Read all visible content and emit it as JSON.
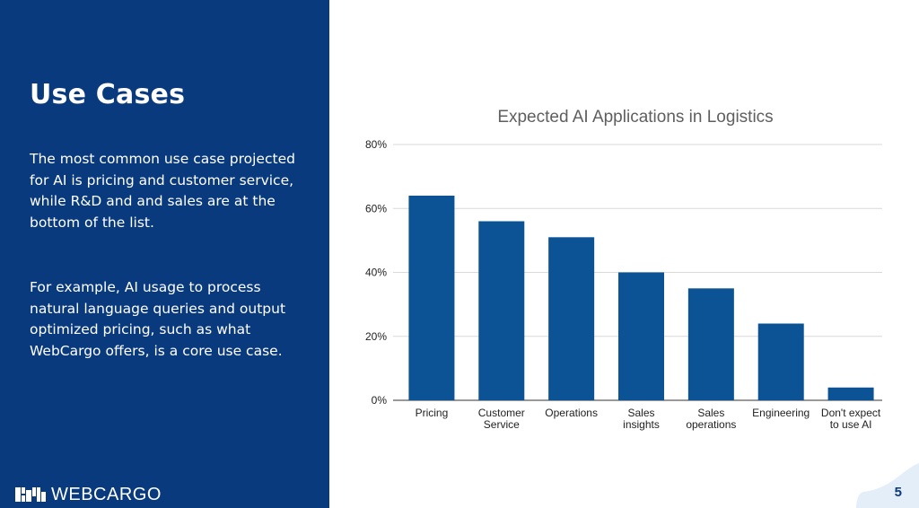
{
  "slide": {
    "title": "Use Cases",
    "paragraph1": "The most common use case projected for AI is pricing and customer service, while R&D and and sales are at the bottom of the list.",
    "paragraph2": "For example, AI usage to process natural language queries and output optimized pricing, such as what WebCargo offers, is a core use case.",
    "brand": "WEBCARGO",
    "page_number": "5"
  },
  "colors": {
    "panel": "#0a3a7e",
    "bar": "#0b5394",
    "grid": "#d9d9d9",
    "accent_wave": "#e3eef8"
  },
  "chart_data": {
    "type": "bar",
    "title": "Expected AI Applications in Logistics",
    "categories": [
      [
        "Pricing"
      ],
      [
        "Customer",
        "Service"
      ],
      [
        "Operations"
      ],
      [
        "Sales",
        "insights"
      ],
      [
        "Sales",
        "operations"
      ],
      [
        "Engineering"
      ],
      [
        "Don't expect",
        "to use AI"
      ]
    ],
    "values": [
      64,
      56,
      51,
      40,
      35,
      24,
      4
    ],
    "ylim": [
      0,
      80
    ],
    "yticks": [
      0,
      20,
      40,
      60,
      80
    ],
    "ytick_labels": [
      "0%",
      "20%",
      "40%",
      "60%",
      "80%"
    ],
    "grid": true,
    "xlabel": "",
    "ylabel": ""
  }
}
